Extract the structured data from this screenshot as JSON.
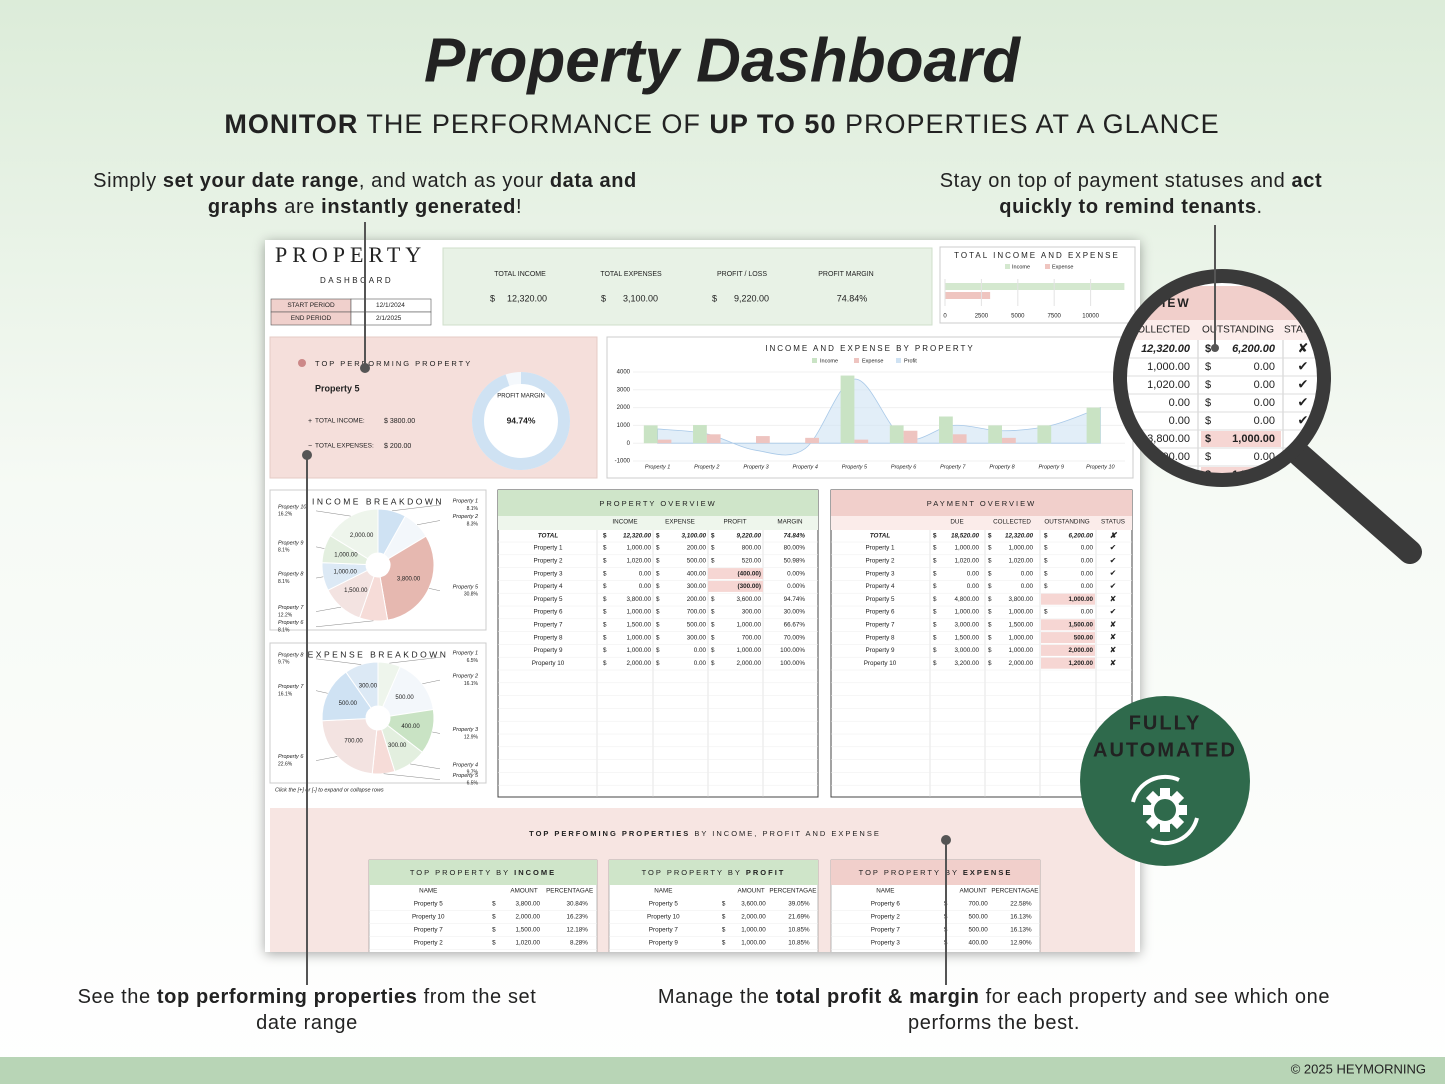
{
  "header": {
    "title": "Property Dashboard",
    "subtitle": [
      {
        "text": "MONITOR",
        "bold": true
      },
      {
        "text": " THE PERFORMANCE OF "
      },
      {
        "text": "UP TO 50",
        "bold": true
      },
      {
        "text": " PROPERTIES AT A GLANCE"
      }
    ]
  },
  "callouts": [
    {
      "lines": [
        [
          {
            "text": "Simply "
          },
          {
            "text": "set your date range",
            "bold": true
          },
          {
            "text": ", and watch as your "
          },
          {
            "text": "data and",
            "bold": true
          }
        ],
        [
          {
            "text": "graphs",
            "bold": true
          },
          {
            "text": " are "
          },
          {
            "text": "instantly generated",
            "bold": true
          },
          {
            "text": "!"
          }
        ]
      ]
    },
    {
      "lines": [
        [
          {
            "text": "Stay on top of payment statuses and "
          },
          {
            "text": "act",
            "bold": true
          }
        ],
        [
          {
            "text": "quickly to remind tenants",
            "bold": true
          },
          {
            "text": "."
          }
        ]
      ]
    },
    {
      "lines": [
        [
          {
            "text": "See the "
          },
          {
            "text": "top performing properties",
            "bold": true
          },
          {
            "text": " from the set"
          }
        ],
        [
          {
            "text": "date range"
          }
        ]
      ]
    },
    {
      "lines": [
        [
          {
            "text": "Manage the "
          },
          {
            "text": "total profit & margin",
            "bold": true
          },
          {
            "text": " for each property and see which one"
          }
        ],
        [
          {
            "text": "performs the best."
          }
        ]
      ]
    }
  ],
  "dashboard": {
    "brand": "PROPERTY",
    "brand_sub": "DASHBOARD",
    "period": [
      {
        "label": "START PERIOD",
        "value": "12/1/2024"
      },
      {
        "label": "END PERIOD",
        "value": "2/1/2025"
      }
    ],
    "currency": "$",
    "kpis": [
      {
        "label": "TOTAL INCOME",
        "value": "12,320.00",
        "dollar": true
      },
      {
        "label": "TOTAL EXPENSES",
        "value": "3,100.00",
        "dollar": true
      },
      {
        "label": "PROFIT / LOSS",
        "value": "9,220.00",
        "dollar": true
      },
      {
        "label": "PROFIT MARGIN",
        "value": "74.84%",
        "dollar": false
      }
    ],
    "totals_chart": {
      "type": "bar",
      "title": "TOTAL INCOME AND EXPENSE",
      "series": [
        {
          "name": "Income",
          "color": "#d4e8cf",
          "values": [
            12320
          ]
        },
        {
          "name": "Expense",
          "color": "#efc5c0",
          "values": [
            3100
          ]
        }
      ],
      "xlim": [
        0,
        12500
      ],
      "xticks": [
        0,
        2500,
        5000,
        7500,
        10000
      ]
    },
    "top": {
      "title": "TOP PERFORMING PROPERTY",
      "name": "Property 5",
      "margin_label": "PROFIT MARGIN",
      "margin": 94.74,
      "margin_text": "94.74%",
      "income_label": "TOTAL INCOME:",
      "income": "$ 3800.00",
      "expense_label": "TOTAL EXPENSES:",
      "expense": "$ 200.00"
    },
    "by_property": {
      "type": "bar",
      "title": "INCOME AND EXPENSE BY PROPERTY",
      "categories": [
        "Property 1",
        "Property 2",
        "Property 3",
        "Property 4",
        "Property 5",
        "Property 6",
        "Property 7",
        "Property 8",
        "Property 9",
        "Property 10"
      ],
      "series": [
        {
          "name": "Income",
          "color": "#c9e3c4",
          "values": [
            1000,
            1020,
            0,
            0,
            3800,
            1000,
            1500,
            1000,
            1000,
            2000
          ]
        },
        {
          "name": "Expense",
          "color": "#eec4c0",
          "values": [
            200,
            500,
            400,
            300,
            200,
            700,
            500,
            300,
            0,
            0
          ]
        },
        {
          "name": "Profit",
          "type": "area",
          "color": "#cfe2f3",
          "values": [
            800,
            520,
            -400,
            -300,
            3600,
            300,
            1000,
            700,
            1000,
            2000
          ]
        }
      ],
      "ylim": [
        -1000,
        4000
      ],
      "yticks": [
        -1000,
        0,
        1000,
        2000,
        3000,
        4000
      ]
    },
    "income_pie": {
      "type": "pie",
      "title": "INCOME BREAKDOWN",
      "categories": [
        "Property 1",
        "Property 2",
        "Property 5",
        "Property 6",
        "Property 7",
        "Property 8",
        "Property 9",
        "Property 10"
      ],
      "values": [
        8.1,
        8.3,
        30.8,
        8.1,
        12.2,
        8.1,
        8.1,
        16.2
      ],
      "value_labels": [
        "8.1%",
        "8.3%",
        "30.8%",
        "8.1%",
        "12.2%",
        "8.1%",
        "8.1%",
        "16.2%"
      ],
      "amount_labels": [
        null,
        null,
        "3,800.00",
        null,
        "1,500.00",
        "1,000.00",
        "1,000.00",
        "2,000.00"
      ],
      "colors": [
        "#cfe2f3",
        "#f3f7fb",
        "#e6b8b0",
        "#f6dcd8",
        "#f3e3e1",
        "#dce9f5",
        "#e3efdf",
        "#eef5ec"
      ]
    },
    "expense_pie": {
      "type": "pie",
      "title": "EXPENSE BREAKDOWN",
      "categories": [
        "Property 1",
        "Property 2",
        "Property 3",
        "Property 4",
        "Property 5",
        "Property 6",
        "Property 7",
        "Property 8"
      ],
      "values": [
        6.5,
        16.1,
        12.9,
        9.7,
        6.5,
        22.6,
        16.1,
        9.7
      ],
      "value_labels": [
        "6.5%",
        "16.1%",
        "12.9%",
        "9.7%",
        "6.5%",
        "22.6%",
        "16.1%",
        "9.7%"
      ],
      "amount_labels": [
        null,
        "500.00",
        "400.00",
        "300.00",
        null,
        "700.00",
        "500.00",
        "300.00"
      ],
      "colors": [
        "#eef5ec",
        "#f3f7fb",
        "#c9e3c4",
        "#e3efdf",
        "#f6dcd8",
        "#f3e3e1",
        "#cfe2f3",
        "#dce9f5"
      ]
    },
    "note": "Click the [+] or [-] to expand or collapse rows",
    "property_overview": {
      "title": "PROPERTY OVERVIEW",
      "columns": [
        "INCOME",
        "EXPENSE",
        "PROFIT",
        "MARGIN"
      ],
      "total": [
        "TOTAL",
        "12,320.00",
        "3,100.00",
        "9,220.00",
        "74.84%"
      ],
      "rows": [
        [
          "Property 1",
          "1,000.00",
          "200.00",
          "800.00",
          "80.00%"
        ],
        [
          "Property 2",
          "1,020.00",
          "500.00",
          "520.00",
          "50.98%"
        ],
        [
          "Property 3",
          "0.00",
          "400.00",
          "(400.00)",
          "0.00%"
        ],
        [
          "Property 4",
          "0.00",
          "300.00",
          "(300.00)",
          "0.00%"
        ],
        [
          "Property 5",
          "3,800.00",
          "200.00",
          "3,600.00",
          "94.74%"
        ],
        [
          "Property 6",
          "1,000.00",
          "700.00",
          "300.00",
          "30.00%"
        ],
        [
          "Property 7",
          "1,500.00",
          "500.00",
          "1,000.00",
          "66.67%"
        ],
        [
          "Property 8",
          "1,000.00",
          "300.00",
          "700.00",
          "70.00%"
        ],
        [
          "Property 9",
          "1,000.00",
          "0.00",
          "1,000.00",
          "100.00%"
        ],
        [
          "Property 10",
          "2,000.00",
          "0.00",
          "2,000.00",
          "100.00%"
        ]
      ]
    },
    "payment_overview": {
      "title": "PAYMENT OVERVIEW",
      "columns": [
        "DUE",
        "COLLECTED",
        "OUTSTANDING",
        "STATUS"
      ],
      "total": [
        "TOTAL",
        "18,520.00",
        "12,320.00",
        "6,200.00",
        "✘"
      ],
      "rows": [
        [
          "Property 1",
          "1,000.00",
          "1,000.00",
          "0.00",
          "✔"
        ],
        [
          "Property 2",
          "1,020.00",
          "1,020.00",
          "0.00",
          "✔"
        ],
        [
          "Property 3",
          "0.00",
          "0.00",
          "0.00",
          "✔"
        ],
        [
          "Property 4",
          "0.00",
          "0.00",
          "0.00",
          "✔"
        ],
        [
          "Property 5",
          "4,800.00",
          "3,800.00",
          "1,000.00",
          "✘"
        ],
        [
          "Property 6",
          "1,000.00",
          "1,000.00",
          "0.00",
          "✔"
        ],
        [
          "Property 7",
          "3,000.00",
          "1,500.00",
          "1,500.00",
          "✘"
        ],
        [
          "Property 8",
          "1,500.00",
          "1,000.00",
          "500.00",
          "✘"
        ],
        [
          "Property 9",
          "3,000.00",
          "1,000.00",
          "2,000.00",
          "✘"
        ],
        [
          "Property 10",
          "3,200.00",
          "2,000.00",
          "1,200.00",
          "✘"
        ]
      ]
    },
    "top_lists": {
      "heading": [
        {
          "text": "TOP PERFOMING PROPERTIES",
          "bold": true
        },
        {
          "text": " BY INCOME, PROFIT AND EXPENSE"
        }
      ],
      "columns": [
        "NAME",
        "AMOUNT",
        "PERCENTAGAE"
      ],
      "tables": [
        {
          "title": [
            {
              "text": "TOP PROPERTY BY "
            },
            {
              "text": "INCOME",
              "bold": true
            }
          ],
          "color": "#cfe5c9",
          "rows": [
            [
              "Property 5",
              "3,800.00",
              "30.84%"
            ],
            [
              "Property 10",
              "2,000.00",
              "16.23%"
            ],
            [
              "Property 7",
              "1,500.00",
              "12.18%"
            ],
            [
              "Property 2",
              "1,020.00",
              "8.28%"
            ]
          ]
        },
        {
          "title": [
            {
              "text": "TOP PROPERTY BY "
            },
            {
              "text": "PROFIT",
              "bold": true
            }
          ],
          "color": "#cfe5c9",
          "rows": [
            [
              "Property 5",
              "3,600.00",
              "39.05%"
            ],
            [
              "Property 10",
              "2,000.00",
              "21.69%"
            ],
            [
              "Property 7",
              "1,000.00",
              "10.85%"
            ],
            [
              "Property 9",
              "1,000.00",
              "10.85%"
            ]
          ]
        },
        {
          "title": [
            {
              "text": "TOP PROPERTY BY "
            },
            {
              "text": "EXPENSE",
              "bold": true
            }
          ],
          "color": "#f1cfcb",
          "rows": [
            [
              "Property 6",
              "700.00",
              "22.58%"
            ],
            [
              "Property 2",
              "500.00",
              "16.13%"
            ],
            [
              "Property 7",
              "500.00",
              "16.13%"
            ],
            [
              "Property 3",
              "400.00",
              "12.90%"
            ]
          ]
        }
      ]
    }
  },
  "magnifier": {
    "heading": "VIEW"
  },
  "badge": [
    "FULLY",
    "AUTOMATED"
  ],
  "footer": "© 2025 HEYMORNING"
}
